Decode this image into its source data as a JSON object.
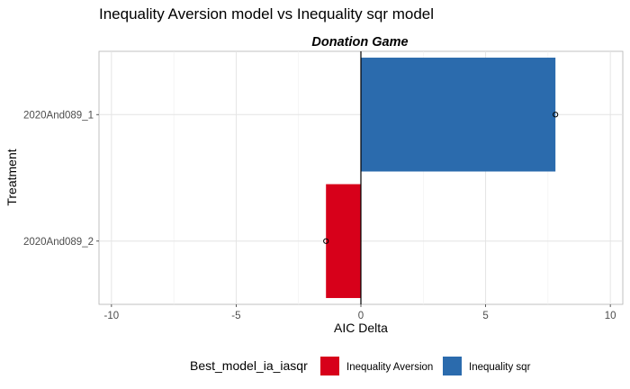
{
  "chart_data": {
    "type": "bar",
    "orientation": "horizontal",
    "title": "Inequality Aversion model vs Inequality sqr model",
    "facet_title": "Donation Game",
    "xlabel": "AIC Delta",
    "ylabel": "Treatment",
    "xlim": [
      -10.5,
      10.5
    ],
    "x_ticks": [
      -10,
      -5,
      0,
      5,
      10
    ],
    "x_tick_labels": [
      "-10",
      "-5",
      "0",
      "5",
      "10"
    ],
    "grid": true,
    "categories": [
      "2020And089_1",
      "2020And089_2"
    ],
    "values": [
      7.8,
      -1.4
    ],
    "point_values": [
      7.8,
      -1.4
    ],
    "bar_groups": [
      "Inequality sqr",
      "Inequality Aversion"
    ],
    "legend": {
      "title": "Best_model_ia_iasqr",
      "position": "bottom",
      "entries": [
        {
          "label": "Inequality Aversion",
          "color": "#d7001a"
        },
        {
          "label": "Inequality sqr",
          "color": "#2b6bad"
        }
      ]
    },
    "zero_line": true
  }
}
